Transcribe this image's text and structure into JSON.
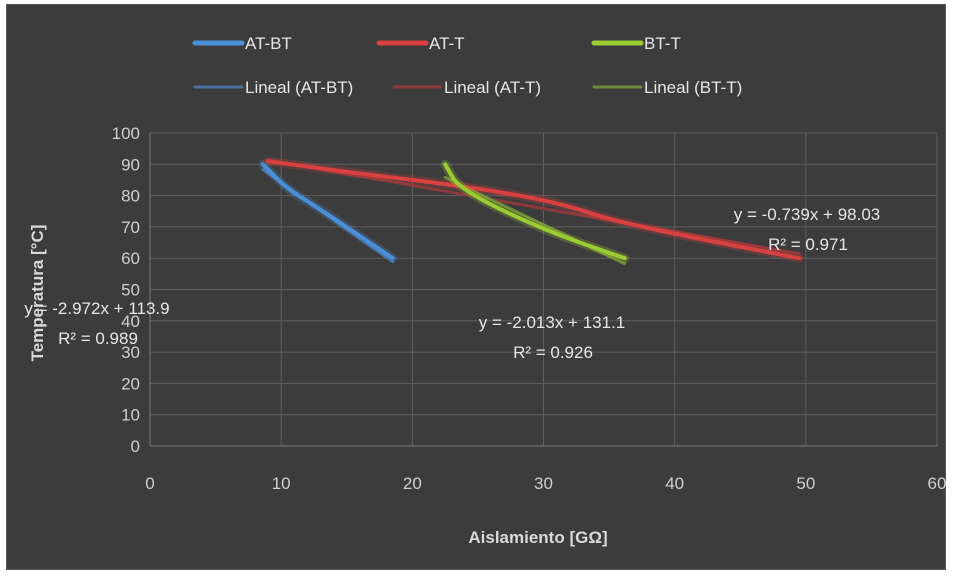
{
  "chart_data": {
    "type": "line",
    "background": "#3c3c3c",
    "grid": true,
    "legend_position": "top",
    "xlabel": "Aislamiento [GΩ]",
    "ylabel": "Temperatura [°C]",
    "xlim": [
      0,
      60
    ],
    "ylim": [
      0,
      100
    ],
    "x_ticks": [
      0,
      10,
      20,
      30,
      40,
      50,
      60
    ],
    "y_ticks": [
      0,
      10,
      20,
      30,
      40,
      50,
      60,
      70,
      80,
      90,
      100
    ],
    "series": [
      {
        "name": "AT-BT",
        "color": "#4a90d9",
        "points": [
          [
            8.6,
            90
          ],
          [
            10.5,
            82
          ],
          [
            12.5,
            77
          ],
          [
            18.5,
            60
          ]
        ]
      },
      {
        "name": "AT-T",
        "color": "#d94040",
        "points": [
          [
            9,
            91
          ],
          [
            16,
            87
          ],
          [
            24,
            83
          ],
          [
            31,
            78
          ],
          [
            36,
            71
          ],
          [
            49.5,
            60
          ]
        ]
      },
      {
        "name": "BT-T",
        "color": "#9acd32",
        "points": [
          [
            22.5,
            90
          ],
          [
            23.6,
            82
          ],
          [
            30,
            69
          ],
          [
            36.2,
            60
          ]
        ]
      }
    ],
    "trendlines": [
      {
        "name": "Lineal (AT-BT)",
        "color": "#4a6f9a",
        "slope": -2.972,
        "intercept": 113.9,
        "x_range": [
          8.6,
          18.5
        ],
        "equation": "y = -2.972x + 113.9",
        "r2": "R² = 0.989"
      },
      {
        "name": "Lineal (AT-T)",
        "color": "#8a3a3a",
        "slope": -0.739,
        "intercept": 98.03,
        "x_range": [
          9,
          49.5
        ],
        "equation": "y = -0.739x + 98.03",
        "r2": "R² = 0.971"
      },
      {
        "name": "Lineal (BT-T)",
        "color": "#6d8a3a",
        "slope": -2.013,
        "intercept": 131.1,
        "x_range": [
          22.5,
          36.2
        ],
        "equation": "y = -2.013x + 131.1",
        "r2": "R² = 0.926"
      }
    ]
  }
}
